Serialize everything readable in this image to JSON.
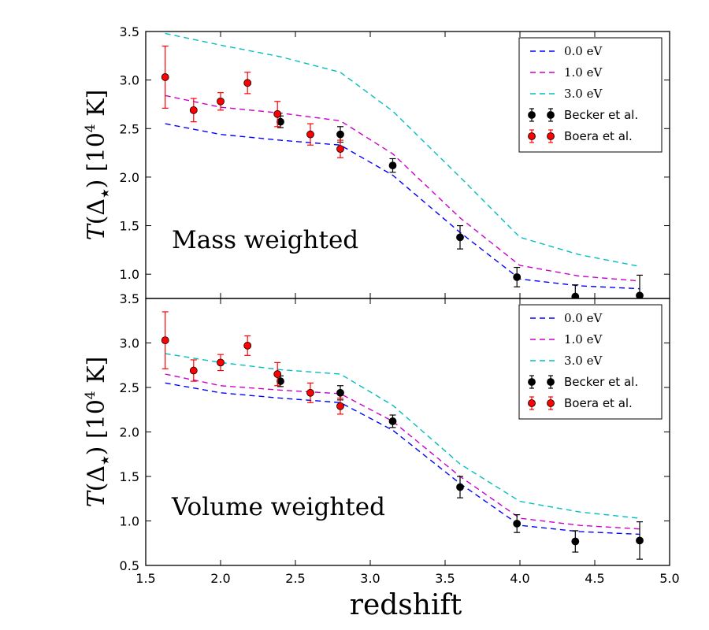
{
  "colors": {
    "c0": "#0000ff",
    "c1": "#cc00cc",
    "c3": "#00bfbf",
    "becker": "#000000",
    "boera": "#ff0000",
    "boera_err": "#ff0000"
  },
  "shared": {
    "xlabel": "redshift",
    "xlim": [
      1.5,
      5.0
    ],
    "xticks": [
      1.5,
      2.0,
      2.5,
      3.0,
      3.5,
      4.0,
      4.5,
      5.0
    ],
    "xtick_labels": [
      "1.5",
      "2.0",
      "2.5",
      "3.0",
      "3.5",
      "4.0",
      "4.5",
      "5.0"
    ],
    "ylabel_parts": {
      "T": "T",
      "open": "(",
      "delta": "Δ",
      "star": "★",
      "close": ")",
      "unit_open": " [10",
      "exp": "4",
      "unit_close": " K]"
    }
  },
  "chart_data": [
    {
      "type": "line",
      "title": "Mass weighted",
      "ylim": [
        0.75,
        3.5
      ],
      "yticks": [
        1.0,
        1.5,
        2.0,
        2.5,
        3.0,
        3.5
      ],
      "ytick_labels": [
        "1.0",
        "1.5",
        "2.0",
        "2.5",
        "3.0",
        "3.5"
      ],
      "legend_position": "top-right",
      "legend": [
        "0.0 eV",
        "1.0 eV",
        "3.0 eV",
        "Becker et al.",
        "Boera et al."
      ],
      "series": [
        {
          "name": "0.0 eV",
          "color_key": "c0",
          "x": [
            1.63,
            2.0,
            2.4,
            2.8,
            3.15,
            3.6,
            4.0,
            4.4,
            4.8
          ],
          "values": [
            2.55,
            2.44,
            2.38,
            2.33,
            2.02,
            1.43,
            0.95,
            0.88,
            0.85
          ]
        },
        {
          "name": "1.0 eV",
          "color_key": "c1",
          "x": [
            1.63,
            2.0,
            2.4,
            2.8,
            3.15,
            3.6,
            4.0,
            4.4,
            4.8
          ],
          "values": [
            2.84,
            2.72,
            2.66,
            2.58,
            2.24,
            1.58,
            1.09,
            0.98,
            0.93
          ]
        },
        {
          "name": "3.0 eV",
          "color_key": "c3",
          "x": [
            1.63,
            2.0,
            2.4,
            2.8,
            3.15,
            3.6,
            4.0,
            4.4,
            4.8
          ],
          "values": [
            3.48,
            3.36,
            3.24,
            3.08,
            2.68,
            2.0,
            1.38,
            1.2,
            1.08
          ]
        }
      ],
      "points": [
        {
          "name": "Becker et al.",
          "color_key": "becker",
          "err_color_key": "becker",
          "x": [
            2.4,
            2.8,
            3.15,
            3.6,
            3.98,
            4.37,
            4.8
          ],
          "y": [
            2.57,
            2.44,
            2.12,
            1.38,
            0.97,
            0.77,
            0.78
          ],
          "err": [
            0.06,
            0.08,
            0.07,
            0.12,
            0.1,
            0.12,
            0.21
          ]
        },
        {
          "name": "Boera et al.",
          "color_key": "boera",
          "err_color_key": "boera_err",
          "x": [
            1.63,
            1.82,
            2.0,
            2.18,
            2.38,
            2.6,
            2.8
          ],
          "y": [
            3.03,
            2.69,
            2.78,
            2.97,
            2.65,
            2.44,
            2.29
          ],
          "err": [
            0.32,
            0.12,
            0.09,
            0.11,
            0.13,
            0.11,
            0.09
          ]
        }
      ]
    },
    {
      "type": "line",
      "title": "Volume weighted",
      "ylim": [
        0.5,
        3.5
      ],
      "yticks": [
        0.5,
        1.0,
        1.5,
        2.0,
        2.5,
        3.0,
        3.5
      ],
      "ytick_labels": [
        "0.5",
        "1.0",
        "1.5",
        "2.0",
        "2.5",
        "3.0",
        "3.5"
      ],
      "legend_position": "top-right",
      "legend": [
        "0.0 eV",
        "1.0 eV",
        "3.0 eV",
        "Becker et al.",
        "Boera et al."
      ],
      "series": [
        {
          "name": "0.0 eV",
          "color_key": "c0",
          "x": [
            1.63,
            2.0,
            2.4,
            2.8,
            3.15,
            3.6,
            4.0,
            4.4,
            4.8
          ],
          "values": [
            2.55,
            2.44,
            2.38,
            2.33,
            2.02,
            1.42,
            0.95,
            0.88,
            0.85
          ]
        },
        {
          "name": "1.0 eV",
          "color_key": "c1",
          "x": [
            1.63,
            2.0,
            2.4,
            2.8,
            3.15,
            3.6,
            4.0,
            4.4,
            4.8
          ],
          "values": [
            2.65,
            2.52,
            2.47,
            2.43,
            2.12,
            1.5,
            1.03,
            0.95,
            0.91
          ]
        },
        {
          "name": "3.0 eV",
          "color_key": "c3",
          "x": [
            1.63,
            2.0,
            2.4,
            2.8,
            3.15,
            3.6,
            4.0,
            4.4,
            4.8
          ],
          "values": [
            2.88,
            2.78,
            2.7,
            2.65,
            2.3,
            1.64,
            1.22,
            1.1,
            1.03
          ]
        }
      ],
      "points": [
        {
          "name": "Becker et al.",
          "color_key": "becker",
          "err_color_key": "becker",
          "x": [
            2.4,
            2.8,
            3.15,
            3.6,
            3.98,
            4.37,
            4.8
          ],
          "y": [
            2.57,
            2.44,
            2.12,
            1.38,
            0.97,
            0.77,
            0.78
          ],
          "err": [
            0.06,
            0.08,
            0.07,
            0.12,
            0.1,
            0.12,
            0.21
          ]
        },
        {
          "name": "Boera et al.",
          "color_key": "boera",
          "err_color_key": "boera_err",
          "x": [
            1.63,
            1.82,
            2.0,
            2.18,
            2.38,
            2.6,
            2.8
          ],
          "y": [
            3.03,
            2.69,
            2.78,
            2.97,
            2.65,
            2.44,
            2.29
          ],
          "err": [
            0.32,
            0.12,
            0.09,
            0.11,
            0.13,
            0.11,
            0.09
          ]
        }
      ]
    }
  ]
}
